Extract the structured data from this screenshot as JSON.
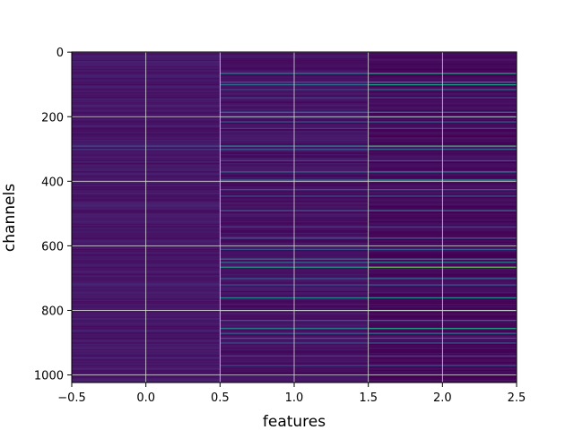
{
  "chart_data": {
    "type": "heatmap",
    "title": "",
    "xlabel": "features",
    "ylabel": "channels",
    "colormap": "viridis",
    "grid": true,
    "x": {
      "columns": [
        0,
        1,
        2
      ],
      "xlim": [
        -0.5,
        2.5
      ],
      "ticks": [
        -0.5,
        0.0,
        0.5,
        1.0,
        1.5,
        2.0,
        2.5
      ],
      "tick_labels": [
        "−0.5",
        "0.0",
        "0.5",
        "1.0",
        "1.5",
        "2.0",
        "2.5"
      ]
    },
    "y": {
      "rows": 1024,
      "ylim": [
        1023.5,
        -0.5
      ],
      "inverted": true,
      "ticks": [
        0,
        200,
        400,
        600,
        800,
        1000
      ],
      "tick_labels": [
        "0",
        "200",
        "400",
        "600",
        "800",
        "1000"
      ]
    },
    "column_background_levels": [
      0.08,
      0.06,
      0.03
    ],
    "highlighted_rows": [
      {
        "channel": 65,
        "values": [
          0.05,
          0.55,
          0.75
        ]
      },
      {
        "channel": 92,
        "values": [
          0.05,
          0.35,
          0.55
        ]
      },
      {
        "channel": 100,
        "values": [
          0.04,
          0.45,
          0.7
        ]
      },
      {
        "channel": 115,
        "values": [
          0.05,
          0.3,
          0.45
        ]
      },
      {
        "channel": 140,
        "values": [
          0.04,
          0.25,
          0.3
        ]
      },
      {
        "channel": 185,
        "values": [
          0.06,
          0.5,
          0.55
        ]
      },
      {
        "channel": 200,
        "values": [
          0.05,
          0.3,
          0.35
        ]
      },
      {
        "channel": 215,
        "values": [
          0.05,
          0.35,
          0.4
        ]
      },
      {
        "channel": 235,
        "values": [
          0.04,
          0.25,
          0.3
        ]
      },
      {
        "channel": 290,
        "values": [
          0.3,
          0.6,
          0.8
        ]
      },
      {
        "channel": 300,
        "values": [
          0.2,
          0.35,
          0.45
        ]
      },
      {
        "channel": 335,
        "values": [
          0.05,
          0.3,
          0.35
        ]
      },
      {
        "channel": 370,
        "values": [
          0.05,
          0.45,
          0.55
        ]
      },
      {
        "channel": 395,
        "values": [
          0.05,
          0.4,
          0.6
        ]
      },
      {
        "channel": 425,
        "values": [
          0.05,
          0.35,
          0.4
        ]
      },
      {
        "channel": 445,
        "values": [
          0.04,
          0.3,
          0.35
        ]
      },
      {
        "channel": 490,
        "values": [
          0.05,
          0.45,
          0.5
        ]
      },
      {
        "channel": 540,
        "values": [
          0.04,
          0.25,
          0.3
        ]
      },
      {
        "channel": 575,
        "values": [
          0.05,
          0.35,
          0.4
        ]
      },
      {
        "channel": 610,
        "values": [
          0.04,
          0.3,
          0.35
        ]
      },
      {
        "channel": 640,
        "values": [
          0.1,
          0.5,
          0.55
        ]
      },
      {
        "channel": 650,
        "values": [
          0.08,
          0.45,
          0.6
        ]
      },
      {
        "channel": 665,
        "values": [
          0.05,
          0.7,
          0.85
        ]
      },
      {
        "channel": 700,
        "values": [
          0.05,
          0.35,
          0.45
        ]
      },
      {
        "channel": 720,
        "values": [
          0.15,
          0.3,
          0.35
        ]
      },
      {
        "channel": 760,
        "values": [
          0.1,
          0.55,
          0.6
        ]
      },
      {
        "channel": 800,
        "values": [
          0.08,
          0.45,
          0.5
        ]
      },
      {
        "channel": 830,
        "values": [
          0.06,
          0.35,
          0.45
        ]
      },
      {
        "channel": 855,
        "values": [
          0.05,
          0.55,
          0.75
        ]
      },
      {
        "channel": 870,
        "values": [
          0.05,
          0.4,
          0.5
        ]
      },
      {
        "channel": 885,
        "values": [
          0.04,
          0.35,
          0.4
        ]
      },
      {
        "channel": 900,
        "values": [
          0.04,
          0.3,
          0.35
        ]
      },
      {
        "channel": 940,
        "values": [
          0.04,
          0.25,
          0.3
        ]
      },
      {
        "channel": 970,
        "values": [
          0.04,
          0.25,
          0.3
        ]
      }
    ]
  }
}
